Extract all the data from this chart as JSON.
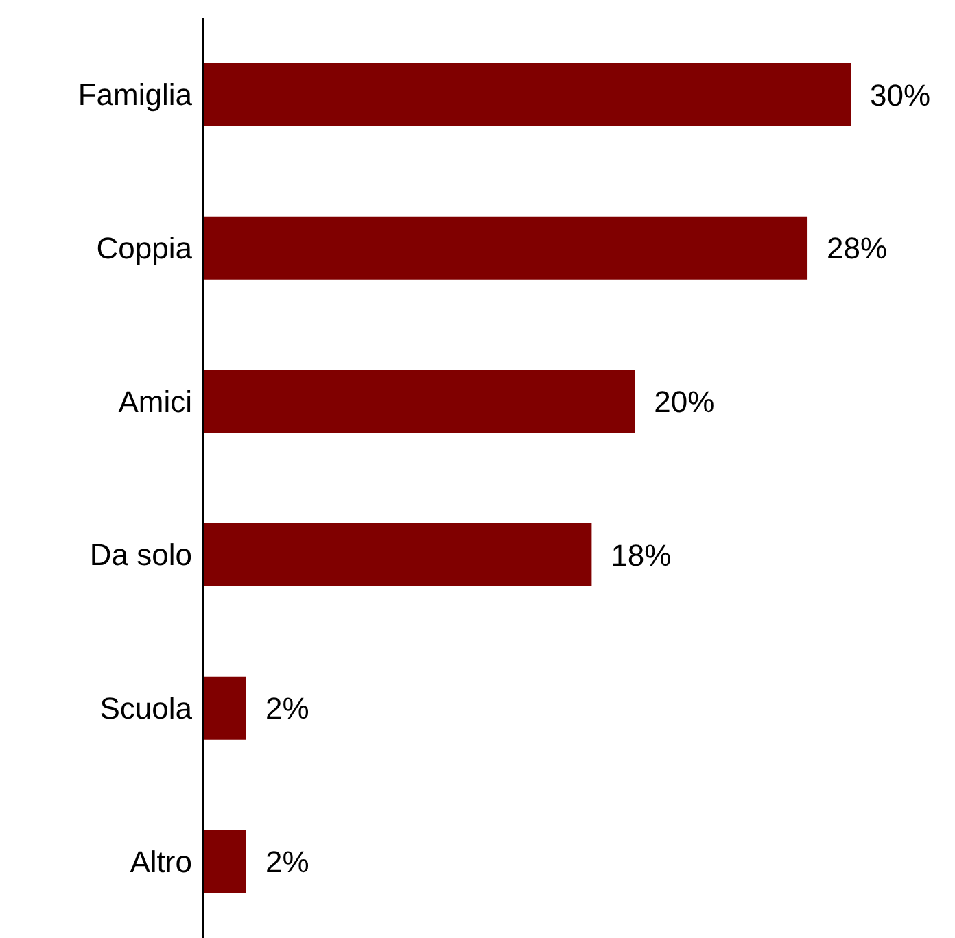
{
  "chart_data": {
    "type": "bar",
    "orientation": "horizontal",
    "categories": [
      "Famiglia",
      "Coppia",
      "Amici",
      "Da solo",
      "Scuola",
      "Altro"
    ],
    "values": [
      30,
      28,
      20,
      18,
      2,
      2
    ],
    "color": "#800000",
    "value_labels": [
      "30%",
      "28%",
      "20%",
      "18%",
      "2%",
      "2%"
    ]
  }
}
